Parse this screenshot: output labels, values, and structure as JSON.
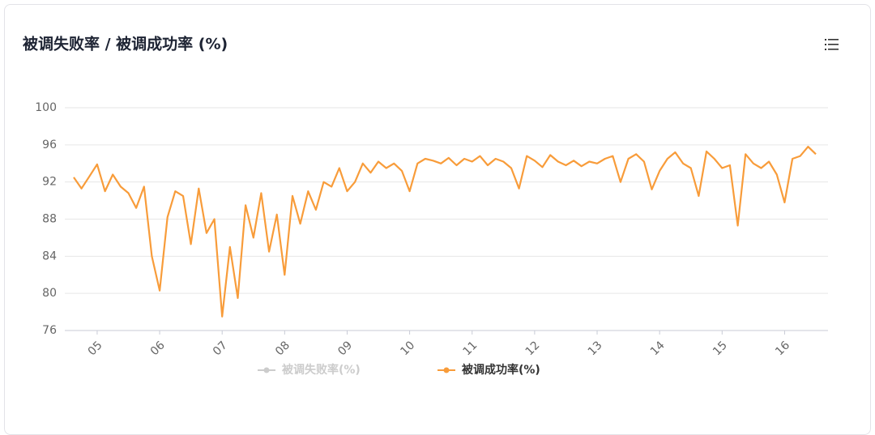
{
  "chart_data": {
    "type": "line",
    "title": "被调失败率 / 被调成功率 (%)",
    "categories": [
      null,
      null,
      null,
      "05",
      null,
      null,
      null,
      null,
      null,
      null,
      null,
      "06",
      null,
      null,
      null,
      null,
      null,
      null,
      null,
      "07",
      null,
      null,
      null,
      null,
      null,
      null,
      null,
      "08",
      null,
      null,
      null,
      null,
      null,
      null,
      null,
      "09",
      null,
      null,
      null,
      null,
      null,
      null,
      null,
      "10",
      null,
      null,
      null,
      null,
      null,
      null,
      null,
      "11",
      null,
      null,
      null,
      null,
      null,
      null,
      null,
      "12",
      null,
      null,
      null,
      null,
      null,
      null,
      null,
      "13",
      null,
      null,
      null,
      null,
      null,
      null,
      null,
      "14",
      null,
      null,
      null,
      null,
      null,
      null,
      null,
      "15",
      null,
      null,
      null,
      null,
      null,
      null,
      null,
      "16",
      null,
      null,
      null,
      null
    ],
    "series": [
      {
        "name": "被调失败率(%)",
        "color": "#cccccc",
        "hidden": true
      },
      {
        "name": "被调成功率(%)",
        "color": "#f89c3a",
        "values": [
          92.5,
          91.3,
          92.6,
          93.9,
          91.0,
          92.8,
          91.5,
          90.8,
          89.2,
          91.5,
          84.0,
          80.3,
          88.2,
          91.0,
          90.5,
          85.3,
          91.3,
          86.5,
          88.0,
          77.5,
          85.0,
          79.5,
          89.5,
          86.0,
          90.8,
          84.5,
          88.5,
          82.0,
          90.5,
          87.5,
          91.0,
          89.0,
          92.0,
          91.5,
          93.5,
          91.0,
          92.0,
          94.0,
          93.0,
          94.2,
          93.5,
          94.0,
          93.2,
          91.0,
          94.0,
          94.5,
          94.3,
          94.0,
          94.6,
          93.8,
          94.5,
          94.2,
          94.8,
          93.8,
          94.5,
          94.2,
          93.5,
          91.3,
          94.8,
          94.3,
          93.6,
          94.9,
          94.2,
          93.8,
          94.3,
          93.7,
          94.2,
          94.0,
          94.5,
          94.8,
          92.0,
          94.5,
          95.0,
          94.2,
          91.2,
          93.2,
          94.5,
          95.2,
          94.0,
          93.5,
          90.5,
          95.3,
          94.5,
          93.5,
          93.8,
          87.3,
          95.0,
          94.0,
          93.5,
          94.2,
          92.8,
          89.8,
          94.5,
          94.8,
          95.8,
          95.0
        ]
      }
    ],
    "ylim": [
      76,
      100
    ],
    "yticks": [
      76,
      80,
      84,
      88,
      92,
      96,
      100
    ],
    "grid": true
  }
}
